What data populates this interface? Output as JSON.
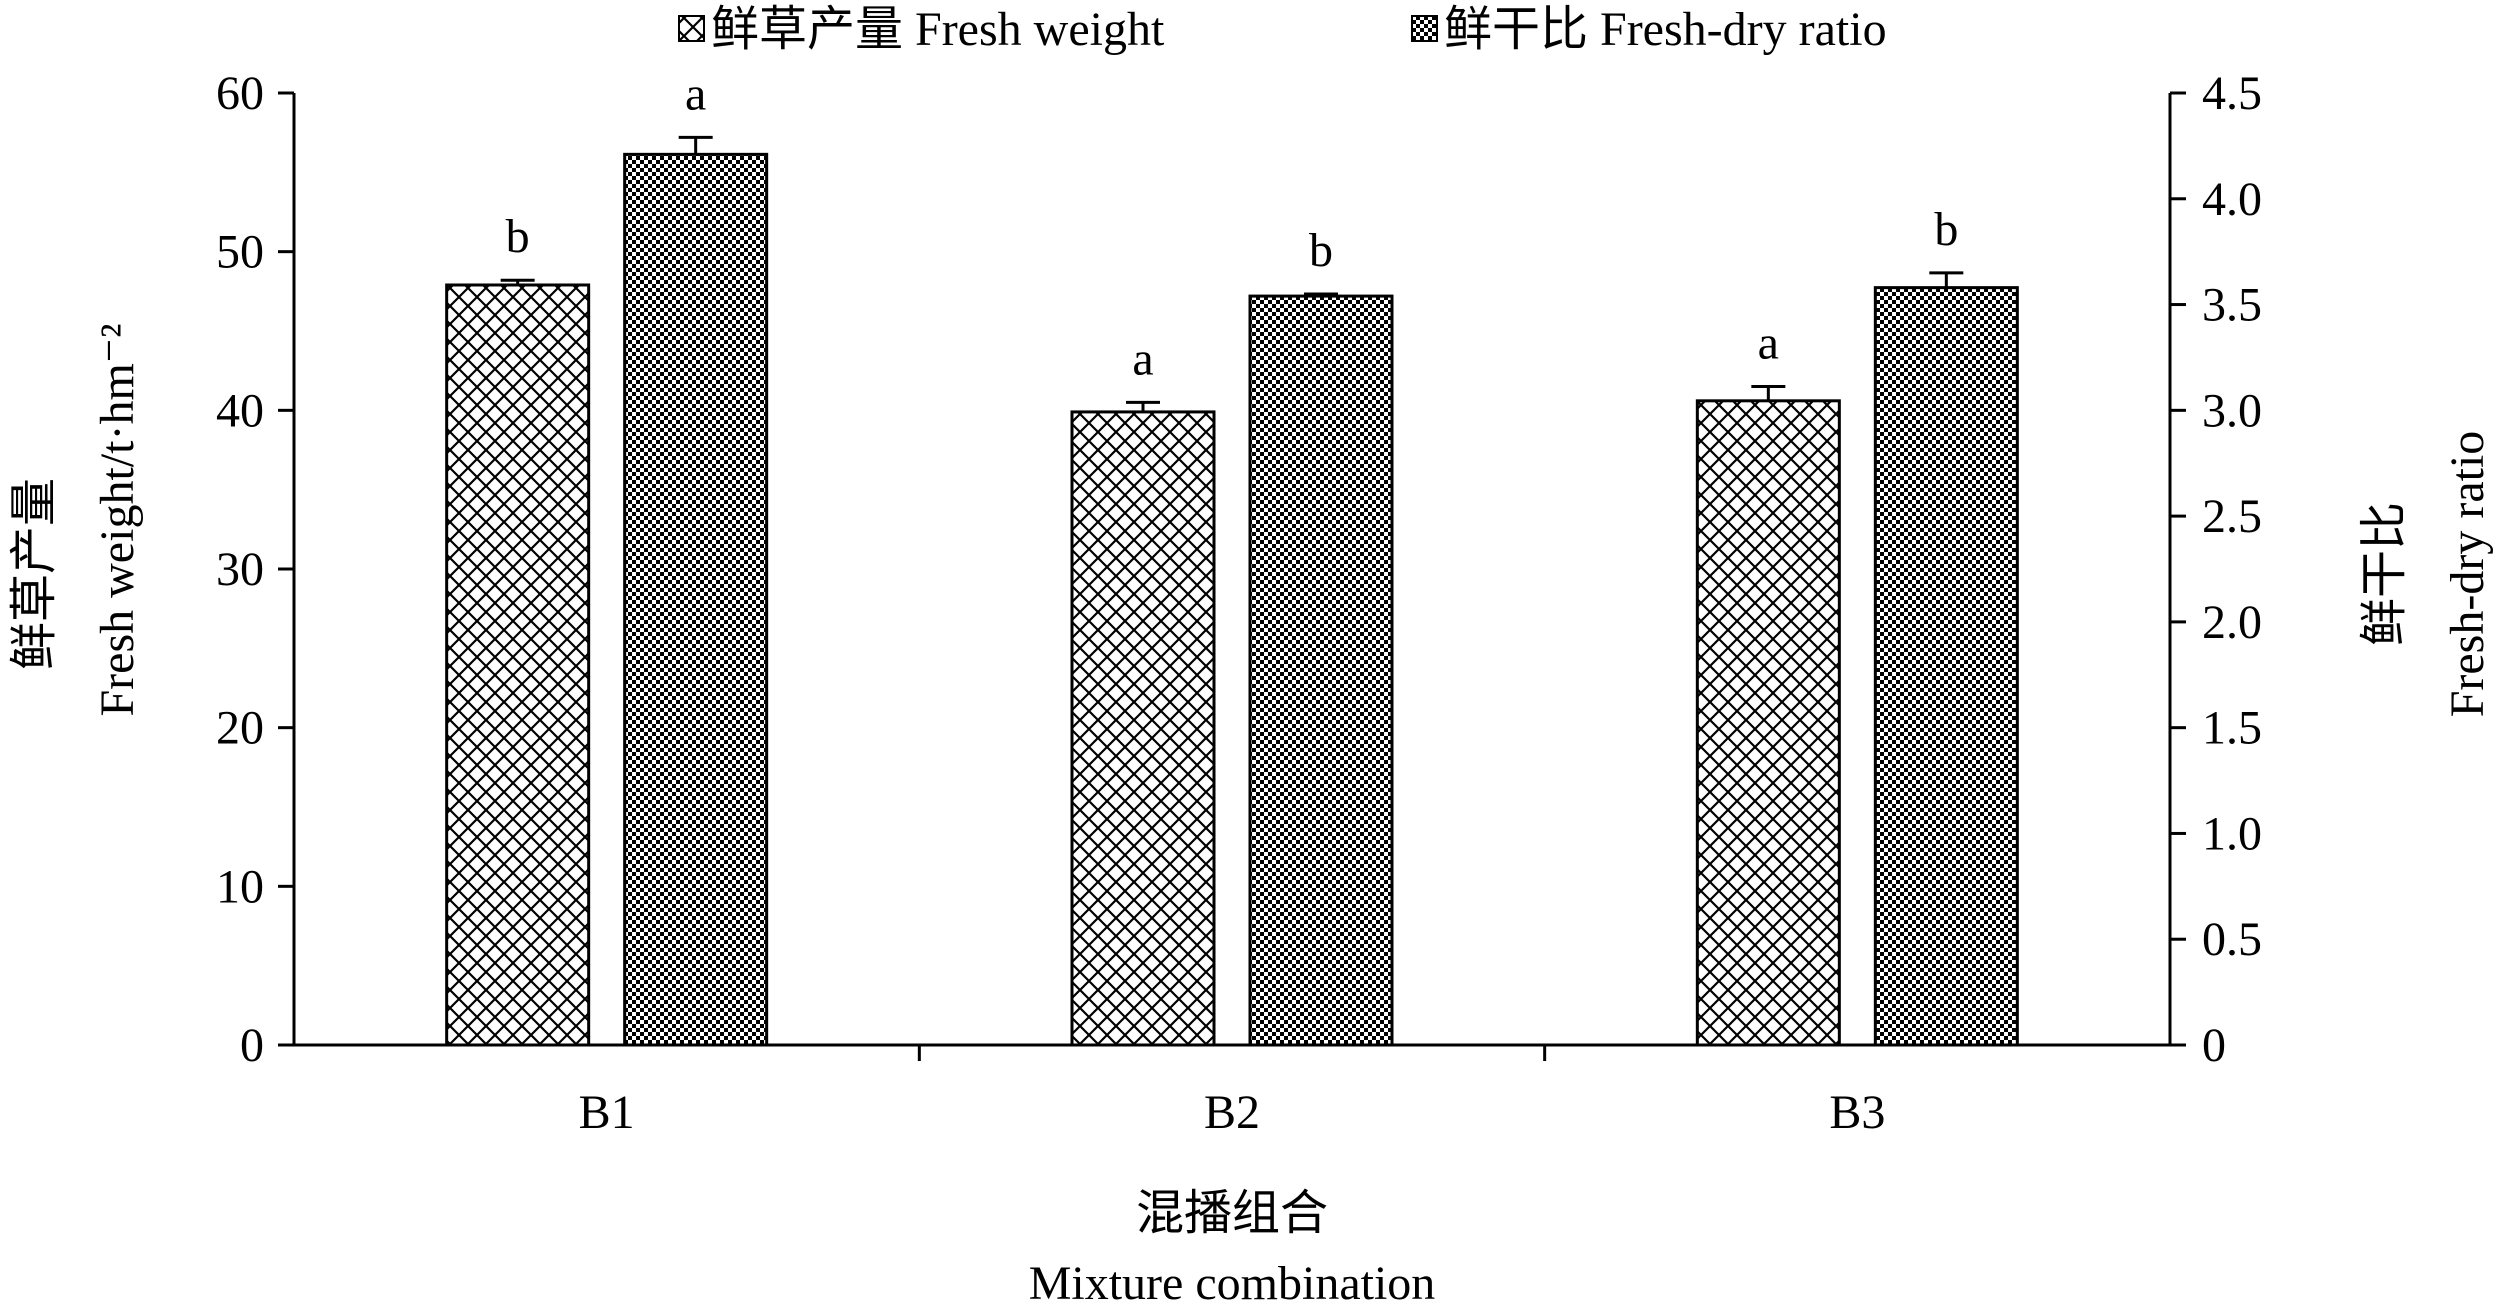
{
  "chart_data": {
    "type": "bar",
    "legend_position": "top-center",
    "grid": false,
    "categories": [
      "B1",
      "B2",
      "B3"
    ],
    "xlabel_cn": "混播组合",
    "xlabel_en": "Mixture combination",
    "ylabel_left_cn": "鲜草产量",
    "ylabel_left_en": "Fresh weight/t·hm⁻²",
    "ylabel_right_cn": "鲜干比",
    "ylabel_right_en": "Fresh-dry ratio",
    "ylim_left": [
      0,
      60
    ],
    "ylim_right": [
      0,
      4.5
    ],
    "yticks_left": [
      "0",
      "10",
      "20",
      "30",
      "40",
      "50",
      "60"
    ],
    "yticks_right": [
      "0",
      "0.5",
      "1.0",
      "1.5",
      "2.0",
      "2.5",
      "3.0",
      "3.5",
      "4.0",
      "4.5"
    ],
    "series": [
      {
        "name": "鲜草产量 Fresh weight",
        "axis": "left",
        "pattern": "light-crosshatch",
        "values": [
          47.9,
          39.9,
          40.6
        ],
        "errors": [
          0.3,
          0.6,
          0.9
        ],
        "labels": [
          "b",
          "a",
          "a"
        ]
      },
      {
        "name": "鲜干比 Fresh-dry ratio",
        "axis": "right",
        "pattern": "dark-checker",
        "values": [
          4.21,
          3.54,
          3.58
        ],
        "errors": [
          0.08,
          0.01,
          0.07
        ],
        "labels": [
          "a",
          "b",
          "b"
        ]
      }
    ]
  }
}
